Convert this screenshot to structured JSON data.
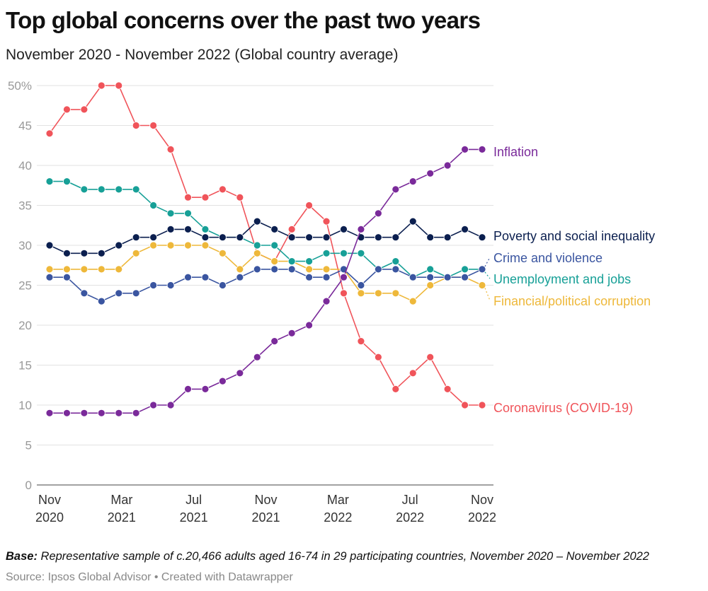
{
  "title": "Top global concerns over the past two years",
  "subtitle": "November 2020 - November 2022 (Global country average)",
  "notes_label": "Base:",
  "notes_text": " Representative sample of c.20,466 adults aged 16-74 in 29 participating countries, November 2020 – November 2022",
  "source": "Source: Ipsos Global Advisor • Created with Datawrapper",
  "chart_data": {
    "type": "line",
    "title": "Top global concerns over the past two years",
    "ylim": [
      0,
      50
    ],
    "y_ticks": [
      "0",
      "5",
      "10",
      "15",
      "20",
      "25",
      "30",
      "35",
      "40",
      "45",
      "50%"
    ],
    "x_ticks": [
      {
        "month": "Nov",
        "year": "2020"
      },
      {
        "month": "Mar",
        "year": "2021"
      },
      {
        "month": "Jul",
        "year": "2021"
      },
      {
        "month": "Nov",
        "year": "2021"
      },
      {
        "month": "Mar",
        "year": "2022"
      },
      {
        "month": "Jul",
        "year": "2022"
      },
      {
        "month": "Nov",
        "year": "2022"
      }
    ],
    "grid": "horizontal",
    "legend": "direct labels at right",
    "series": [
      {
        "name": "Coronavirus (COVID-19)",
        "color": "#f0545a",
        "values": [
          44,
          47,
          47,
          50,
          50,
          45,
          45,
          42,
          36,
          36,
          37,
          36,
          29,
          28,
          32,
          35,
          33,
          24,
          18,
          16,
          12,
          14,
          16,
          12,
          10,
          10
        ]
      },
      {
        "name": "Financial/political corruption",
        "color": "#eeb83a",
        "values": [
          27,
          27,
          27,
          27,
          27,
          29,
          30,
          30,
          30,
          30,
          29,
          27,
          29,
          28,
          28,
          27,
          27,
          27,
          24,
          24,
          24,
          23,
          25,
          26,
          26,
          25
        ]
      },
      {
        "name": "Unemployment and jobs",
        "color": "#17a097",
        "values": [
          38,
          38,
          37,
          37,
          37,
          37,
          35,
          34,
          34,
          32,
          31,
          31,
          30,
          30,
          28,
          28,
          29,
          29,
          29,
          27,
          28,
          26,
          27,
          26,
          27,
          27
        ]
      },
      {
        "name": "Crime and violence",
        "color": "#3a55a0",
        "values": [
          26,
          26,
          24,
          23,
          24,
          24,
          25,
          25,
          26,
          26,
          25,
          26,
          27,
          27,
          27,
          26,
          26,
          27,
          25,
          27,
          27,
          26,
          26,
          26,
          26,
          27
        ]
      },
      {
        "name": "Poverty and social inequality",
        "color": "#0b1f4f",
        "values": [
          30,
          29,
          29,
          29,
          30,
          31,
          31,
          32,
          32,
          31,
          31,
          31,
          33,
          32,
          31,
          31,
          31,
          32,
          31,
          31,
          31,
          33,
          31,
          31,
          32,
          31
        ]
      },
      {
        "name": "Inflation",
        "color": "#7a2a9a",
        "values": [
          9,
          9,
          9,
          9,
          9,
          9,
          10,
          10,
          12,
          12,
          13,
          14,
          16,
          18,
          19,
          20,
          23,
          26,
          32,
          34,
          37,
          38,
          39,
          40,
          42,
          42
        ]
      }
    ]
  }
}
